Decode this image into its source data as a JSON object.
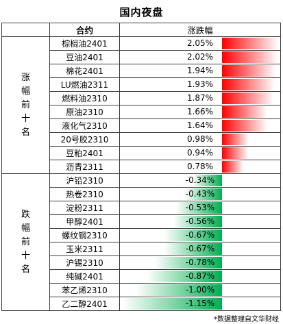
{
  "title": "国内夜盘",
  "header": {
    "contract": "合约",
    "change": "涨跌幅"
  },
  "groups": {
    "top": "涨幅前十名",
    "bottom": "跌幅前十名"
  },
  "colors": {
    "up": "#ff0000",
    "down": "#00b050"
  },
  "note": "*数据整理自文华财经",
  "chart_data": {
    "type": "bar",
    "title": "国内夜盘",
    "xlabel": "",
    "ylabel": "涨跌幅",
    "unit": "%",
    "top_gainers": {
      "categories": [
        "棕榈油2401",
        "豆油2401",
        "棉花2401",
        "LU燃油2311",
        "燃料油2310",
        "原油2310",
        "液化气2310",
        "20号胶2310",
        "豆粕2401",
        "沥青2311"
      ],
      "values": [
        2.05,
        2.02,
        1.94,
        1.93,
        1.87,
        1.66,
        1.64,
        0.98,
        0.94,
        0.78
      ],
      "labels": [
        "2.05%",
        "2.02%",
        "1.94%",
        "1.93%",
        "1.87%",
        "1.66%",
        "1.64%",
        "0.98%",
        "0.94%",
        "0.78%"
      ]
    },
    "top_losers": {
      "categories": [
        "沪铅2310",
        "热卷2310",
        "淀粉2311",
        "甲醇2401",
        "螺纹钢2310",
        "玉米2311",
        "沪锡2310",
        "纯碱2401",
        "苯乙烯2310",
        "乙二醇2401"
      ],
      "values": [
        -0.34,
        -0.43,
        -0.53,
        -0.56,
        -0.67,
        -0.67,
        -0.78,
        -0.87,
        -1.0,
        -1.15
      ],
      "labels": [
        "-0.34%",
        "-0.43%",
        "-0.53%",
        "-0.56%",
        "-0.67%",
        "-0.67%",
        "-0.78%",
        "-0.87%",
        "-1.00%",
        "-1.15%"
      ]
    }
  }
}
